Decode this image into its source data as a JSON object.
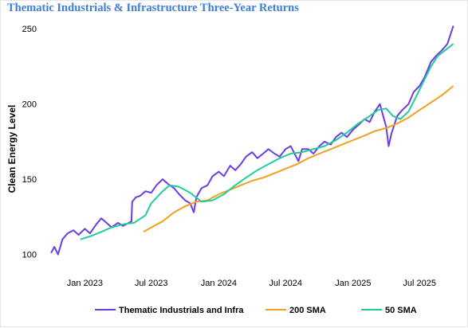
{
  "chart_data": {
    "type": "line",
    "title": "Thematic Industrials & Infrastructure Three-Year Returns",
    "xlabel": "",
    "ylabel": "Clean Energy Level",
    "xlim": [
      "2022-09-20",
      "2025-10-15"
    ],
    "ylim": [
      95,
      257
    ],
    "yticks": [
      100,
      150,
      200,
      250
    ],
    "xticks": [
      {
        "date": "2023-01-01",
        "label": "Jan 2023"
      },
      {
        "date": "2023-07-01",
        "label": "Jul 2023"
      },
      {
        "date": "2024-01-01",
        "label": "Jan 2024"
      },
      {
        "date": "2024-07-01",
        "label": "Jul 2024"
      },
      {
        "date": "2025-01-01",
        "label": "Jan 2025"
      },
      {
        "date": "2025-07-01",
        "label": "Jul 2025"
      }
    ],
    "grid": false,
    "legend_position": "bottom",
    "series": [
      {
        "name": "Thematic Industrials and Infra",
        "color": "#6a3de8",
        "x": [
          "2022-10-01",
          "2022-10-10",
          "2022-10-20",
          "2022-11-01",
          "2022-11-15",
          "2022-12-01",
          "2022-12-15",
          "2023-01-01",
          "2023-01-15",
          "2023-02-01",
          "2023-02-15",
          "2023-03-01",
          "2023-03-15",
          "2023-04-01",
          "2023-04-15",
          "2023-05-01",
          "2023-05-08",
          "2023-05-10",
          "2023-05-20",
          "2023-06-01",
          "2023-06-15",
          "2023-07-01",
          "2023-07-15",
          "2023-08-01",
          "2023-08-15",
          "2023-09-01",
          "2023-09-15",
          "2023-10-01",
          "2023-10-15",
          "2023-10-25",
          "2023-11-01",
          "2023-11-15",
          "2023-12-01",
          "2023-12-15",
          "2024-01-01",
          "2024-01-15",
          "2024-02-01",
          "2024-02-15",
          "2024-03-01",
          "2024-03-15",
          "2024-04-01",
          "2024-04-15",
          "2024-05-01",
          "2024-05-15",
          "2024-06-01",
          "2024-06-15",
          "2024-07-01",
          "2024-07-15",
          "2024-08-05",
          "2024-08-15",
          "2024-09-01",
          "2024-09-15",
          "2024-10-01",
          "2024-10-15",
          "2024-11-01",
          "2024-11-15",
          "2024-12-01",
          "2024-12-15",
          "2025-01-01",
          "2025-01-15",
          "2025-02-01",
          "2025-02-15",
          "2025-03-01",
          "2025-03-15",
          "2025-04-01",
          "2025-04-08",
          "2025-04-15",
          "2025-05-01",
          "2025-05-15",
          "2025-06-01",
          "2025-06-15",
          "2025-07-01",
          "2025-07-15",
          "2025-08-01",
          "2025-08-15",
          "2025-09-01",
          "2025-09-15",
          "2025-10-01"
        ],
        "values": [
          101,
          105,
          100,
          110,
          114,
          116,
          113,
          117,
          114,
          120,
          124,
          121,
          118,
          121,
          119,
          121,
          122,
          135,
          138,
          139,
          142,
          141,
          146,
          150,
          147,
          144,
          140,
          136,
          134,
          128,
          138,
          144,
          146,
          152,
          155,
          152,
          159,
          156,
          160,
          165,
          168,
          164,
          167,
          170,
          167,
          165,
          170,
          172,
          162,
          170,
          170,
          167,
          172,
          175,
          173,
          178,
          181,
          178,
          183,
          186,
          190,
          188,
          195,
          200,
          185,
          172,
          180,
          192,
          196,
          200,
          208,
          212,
          218,
          228,
          232,
          236,
          240,
          252
        ]
      },
      {
        "name": "200 SMA",
        "color": "#f0a020",
        "x": [
          "2023-06-10",
          "2023-07-01",
          "2023-08-01",
          "2023-09-01",
          "2023-10-01",
          "2023-11-01",
          "2023-12-01",
          "2024-01-01",
          "2024-02-01",
          "2024-03-01",
          "2024-04-01",
          "2024-05-01",
          "2024-06-01",
          "2024-07-01",
          "2024-08-01",
          "2024-09-01",
          "2024-10-01",
          "2024-11-01",
          "2024-12-01",
          "2025-01-01",
          "2025-02-01",
          "2025-03-01",
          "2025-04-01",
          "2025-05-01",
          "2025-06-01",
          "2025-07-01",
          "2025-08-01",
          "2025-09-01",
          "2025-10-01"
        ],
        "values": [
          115,
          118,
          122,
          128,
          132,
          135,
          136,
          140,
          143,
          146,
          149,
          151,
          154,
          157,
          160,
          164,
          167,
          170,
          173,
          176,
          179,
          182,
          184,
          187,
          191,
          196,
          201,
          206,
          212
        ]
      },
      {
        "name": "50 SMA",
        "color": "#22cc99",
        "x": [
          "2022-12-20",
          "2023-01-15",
          "2023-02-15",
          "2023-03-15",
          "2023-04-15",
          "2023-05-15",
          "2023-06-15",
          "2023-07-01",
          "2023-08-01",
          "2023-08-20",
          "2023-09-15",
          "2023-10-15",
          "2023-11-15",
          "2023-12-15",
          "2024-01-15",
          "2024-02-15",
          "2024-03-15",
          "2024-04-15",
          "2024-05-15",
          "2024-06-15",
          "2024-07-15",
          "2024-08-15",
          "2024-09-15",
          "2024-10-15",
          "2024-11-15",
          "2024-12-15",
          "2025-01-15",
          "2025-02-15",
          "2025-03-10",
          "2025-04-01",
          "2025-04-20",
          "2025-05-10",
          "2025-06-01",
          "2025-06-20",
          "2025-07-10",
          "2025-08-01",
          "2025-08-20",
          "2025-09-10",
          "2025-10-01"
        ],
        "values": [
          110,
          112,
          115,
          118,
          120,
          121,
          126,
          134,
          142,
          146,
          145,
          141,
          135,
          136,
          140,
          146,
          151,
          156,
          160,
          164,
          167,
          168,
          170,
          172,
          176,
          181,
          187,
          192,
          196,
          197,
          192,
          190,
          195,
          204,
          214,
          225,
          232,
          236,
          240
        ]
      }
    ]
  }
}
